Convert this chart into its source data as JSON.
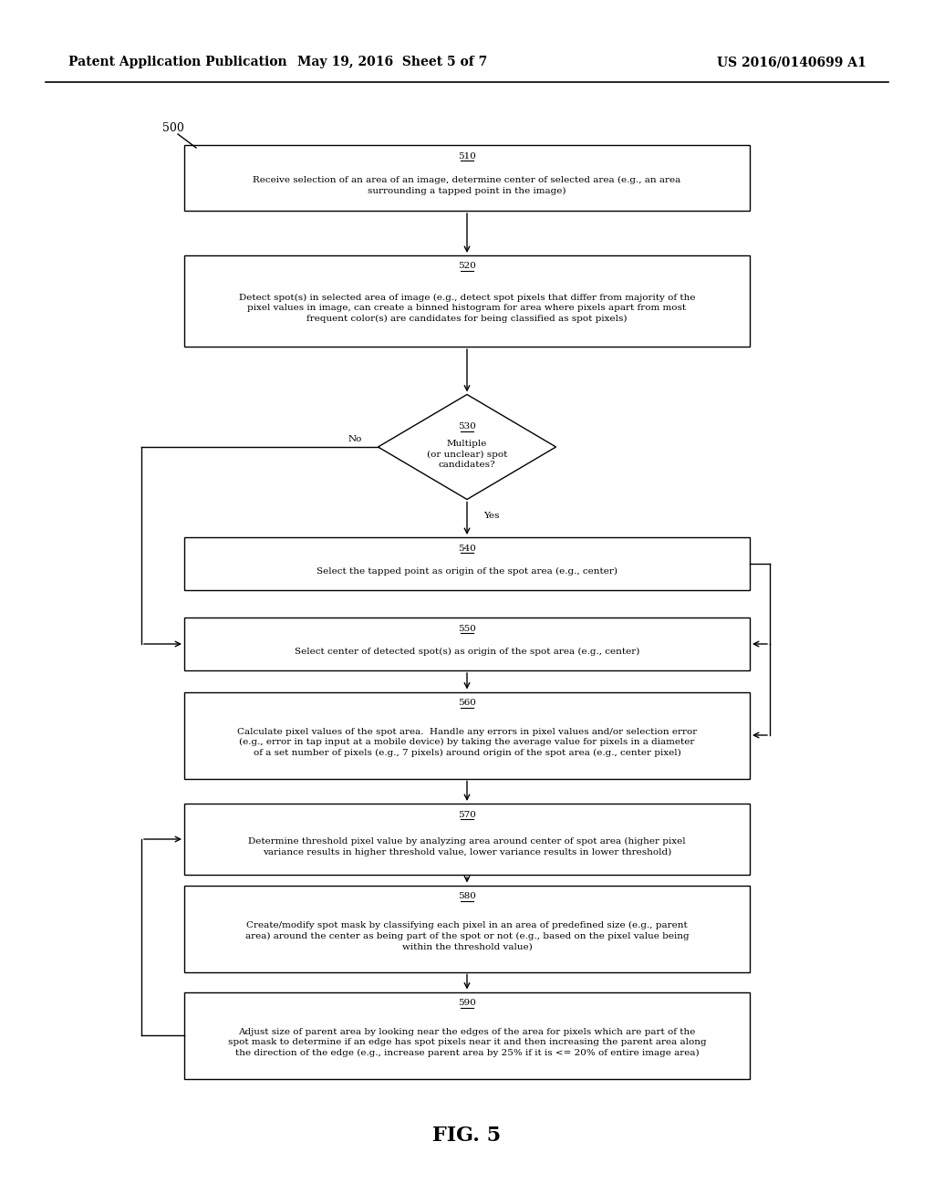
{
  "bg_color": "#ffffff",
  "header_left": "Patent Application Publication",
  "header_center": "May 19, 2016  Sheet 5 of 7",
  "header_right": "US 2016/0140699 A1",
  "fig_label": "FIG. 5",
  "diagram_label": "500",
  "box510_label": "510",
  "box510_text": "Receive selection of an area of an image, determine center of selected area (e.g., an area\nsurrounding a tapped point in the image)",
  "box520_label": "520",
  "box520_text": "Detect spot(s) in selected area of image (e.g., detect spot pixels that differ from majority of the\npixel values in image, can create a binned histogram for area where pixels apart from most\nfrequent color(s) are candidates for being classified as spot pixels)",
  "diamond530_label": "530",
  "diamond530_text": "Multiple\n(or unclear) spot\ncandidates?",
  "box540_label": "540",
  "box540_text": "Select the tapped point as origin of the spot area (e.g., center)",
  "box550_label": "550",
  "box550_text": "Select center of detected spot(s) as origin of the spot area (e.g., center)",
  "box560_label": "560",
  "box560_text": "Calculate pixel values of the spot area.  Handle any errors in pixel values and/or selection error\n(e.g., error in tap input at a mobile device) by taking the average value for pixels in a diameter\nof a set number of pixels (e.g., 7 pixels) around origin of the spot area (e.g., center pixel)",
  "box570_label": "570",
  "box570_text": "Determine threshold pixel value by analyzing area around center of spot area (higher pixel\nvariance results in higher threshold value, lower variance results in lower threshold)",
  "box580_label": "580",
  "box580_text": "Create/modify spot mask by classifying each pixel in an area of predefined size (e.g., parent\narea) around the center as being part of the spot or not (e.g., based on the pixel value being\nwithin the threshold value)",
  "box590_label": "590",
  "box590_text": "Adjust size of parent area by looking near the edges of the area for pixels which are part of the\nspot mask to determine if an edge has spot pixels near it and then increasing the parent area along\nthe direction of the edge (e.g., increase parent area by 25% if it is <= 20% of entire image area)",
  "label_no": "No",
  "label_yes": "Yes",
  "header_fontsize": 10,
  "label_fontsize": 9,
  "text_fontsize": 7.5,
  "fig5_fontsize": 16
}
